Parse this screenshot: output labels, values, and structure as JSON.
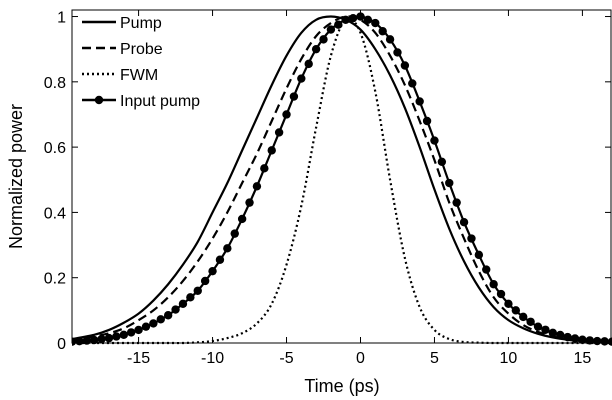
{
  "chart_data": {
    "type": "line",
    "title": "",
    "xlabel": "Time (ps)",
    "ylabel": "Normalized power",
    "xlim": [
      -19.5,
      17
    ],
    "ylim": [
      0,
      1.02
    ],
    "x_ticks": [
      -15,
      -10,
      -5,
      0,
      5,
      10,
      15
    ],
    "x_tick_labels": [
      "-15",
      "-10",
      "-5",
      "0",
      "5",
      "10",
      "15"
    ],
    "y_ticks": [
      0,
      0.2,
      0.4,
      0.6,
      0.8,
      1
    ],
    "y_tick_labels": [
      "0",
      "0.2",
      "0.4",
      "0.6",
      "0.8",
      "1"
    ],
    "grid": false,
    "legend_position": "top-left",
    "x": [
      -19.5,
      -18,
      -17,
      -16,
      -15,
      -14,
      -13,
      -12,
      -11,
      -10,
      -9,
      -8,
      -7,
      -6,
      -5,
      -4,
      -3,
      -2,
      -1,
      0,
      1,
      2,
      3,
      4,
      5,
      6,
      7,
      8,
      9,
      10,
      11,
      12,
      13,
      14,
      15,
      16,
      17
    ],
    "series": [
      {
        "name": "Pump",
        "style": "solid",
        "color": "#000000",
        "values": [
          0.012,
          0.025,
          0.04,
          0.062,
          0.09,
          0.13,
          0.18,
          0.24,
          0.31,
          0.4,
          0.49,
          0.59,
          0.69,
          0.79,
          0.88,
          0.95,
          0.99,
          1.0,
          0.99,
          0.96,
          0.9,
          0.82,
          0.72,
          0.6,
          0.47,
          0.35,
          0.25,
          0.17,
          0.11,
          0.07,
          0.045,
          0.028,
          0.017,
          0.01,
          0.006,
          0.004,
          0.003
        ]
      },
      {
        "name": "Probe",
        "style": "dashed",
        "color": "#000000",
        "values": [
          0.01,
          0.02,
          0.03,
          0.045,
          0.07,
          0.1,
          0.14,
          0.19,
          0.25,
          0.32,
          0.4,
          0.49,
          0.58,
          0.68,
          0.78,
          0.87,
          0.94,
          0.98,
          1.0,
          0.99,
          0.95,
          0.88,
          0.79,
          0.68,
          0.56,
          0.43,
          0.32,
          0.22,
          0.14,
          0.09,
          0.055,
          0.034,
          0.02,
          0.012,
          0.008,
          0.005,
          0.003
        ]
      },
      {
        "name": "FWM",
        "style": "dotted",
        "color": "#000000",
        "values": [
          0,
          0,
          0,
          0,
          0,
          0,
          0,
          0,
          0.002,
          0.006,
          0.015,
          0.03,
          0.06,
          0.12,
          0.24,
          0.42,
          0.66,
          0.88,
          0.99,
          0.95,
          0.77,
          0.5,
          0.26,
          0.11,
          0.04,
          0.012,
          0.003,
          0.001,
          0,
          0,
          0,
          0,
          0,
          0,
          0,
          0,
          0
        ]
      },
      {
        "name": "Input pump",
        "style": "solid-markers",
        "color": "#000000",
        "values": [
          0.004,
          0.009,
          0.015,
          0.025,
          0.04,
          0.06,
          0.085,
          0.12,
          0.16,
          0.22,
          0.29,
          0.38,
          0.48,
          0.59,
          0.7,
          0.81,
          0.9,
          0.96,
          0.99,
          1.0,
          0.98,
          0.93,
          0.85,
          0.74,
          0.62,
          0.49,
          0.37,
          0.27,
          0.18,
          0.12,
          0.08,
          0.05,
          0.031,
          0.018,
          0.01,
          0.006,
          0.004
        ]
      }
    ]
  }
}
